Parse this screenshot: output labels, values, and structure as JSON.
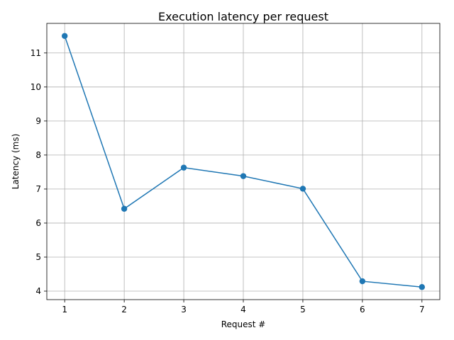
{
  "chart_data": {
    "type": "line",
    "title": "Execution latency per request",
    "xlabel": "Request #",
    "ylabel": "Latency (ms)",
    "x": [
      1,
      2,
      3,
      4,
      5,
      6,
      7
    ],
    "series": [
      {
        "values": [
          11.5,
          6.42,
          7.63,
          7.38,
          7.01,
          4.29,
          4.12
        ],
        "color": "#1f77b4",
        "marker": "circle"
      }
    ],
    "xticks": [
      1,
      2,
      3,
      4,
      5,
      6,
      7
    ],
    "yticks": [
      4,
      5,
      6,
      7,
      8,
      9,
      10,
      11
    ],
    "xlim": [
      0.7,
      7.3
    ],
    "ylim": [
      3.75,
      11.87
    ],
    "grid": true
  }
}
